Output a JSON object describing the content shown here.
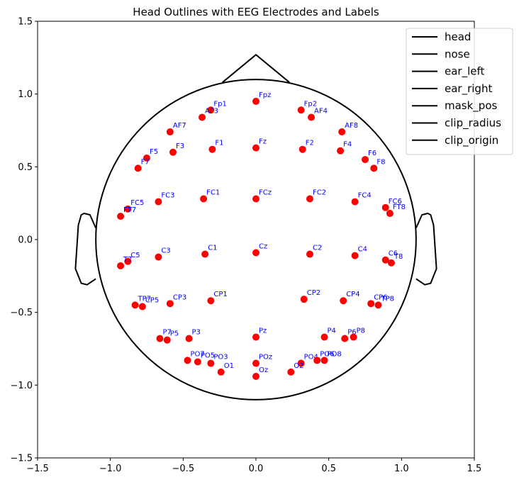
{
  "chart_data": {
    "type": "scatter",
    "title": "Head Outlines with EEG Electrodes and Labels",
    "xlabel": "",
    "ylabel": "",
    "xlim": [
      -1.5,
      1.5
    ],
    "ylim": [
      -1.5,
      1.5
    ],
    "xticks": [
      "−1.5",
      "−1.0",
      "−0.5",
      "0.0",
      "0.5",
      "1.0",
      "1.5"
    ],
    "yticks": [
      "−1.5",
      "−1.0",
      "−0.5",
      "0.0",
      "0.5",
      "1.0",
      "1.5"
    ],
    "xtick_values": [
      -1.5,
      -1.0,
      -0.5,
      0.0,
      0.5,
      1.0,
      1.5
    ],
    "ytick_values": [
      -1.5,
      -1.0,
      -0.5,
      0.0,
      0.5,
      1.0,
      1.5
    ],
    "grid": false,
    "legend_position": "top-right",
    "legend": [
      "head",
      "nose",
      "ear_left",
      "ear_right",
      "mask_pos",
      "clip_radius",
      "clip_origin"
    ],
    "colors": {
      "outline": "#000000",
      "electrode": "#ff0000",
      "label": "#0000ff"
    },
    "head_radius": 1.1,
    "nose": [
      [
        -0.23,
        1.08
      ],
      [
        0.0,
        1.27
      ],
      [
        0.23,
        1.08
      ]
    ],
    "ear_right": [
      [
        1.1,
        0.08
      ],
      [
        1.14,
        0.17
      ],
      [
        1.18,
        0.18
      ],
      [
        1.2,
        0.17
      ],
      [
        1.22,
        0.1
      ],
      [
        1.24,
        -0.2
      ],
      [
        1.2,
        -0.3
      ],
      [
        1.16,
        -0.31
      ],
      [
        1.1,
        -0.27
      ]
    ],
    "ear_left": [
      [
        -1.1,
        0.08
      ],
      [
        -1.14,
        0.17
      ],
      [
        -1.18,
        0.18
      ],
      [
        -1.2,
        0.17
      ],
      [
        -1.22,
        0.1
      ],
      [
        -1.24,
        -0.2
      ],
      [
        -1.2,
        -0.3
      ],
      [
        -1.16,
        -0.31
      ],
      [
        -1.1,
        -0.27
      ]
    ],
    "electrodes": [
      {
        "name": "Fp1",
        "x": -0.31,
        "y": 0.89
      },
      {
        "name": "Fpz",
        "x": 0.0,
        "y": 0.95
      },
      {
        "name": "Fp2",
        "x": 0.31,
        "y": 0.89
      },
      {
        "name": "AF3",
        "x": -0.37,
        "y": 0.84
      },
      {
        "name": "AF4",
        "x": 0.38,
        "y": 0.84
      },
      {
        "name": "AF7",
        "x": -0.59,
        "y": 0.74
      },
      {
        "name": "AF8",
        "x": 0.59,
        "y": 0.74
      },
      {
        "name": "F1",
        "x": -0.3,
        "y": 0.62
      },
      {
        "name": "Fz",
        "x": 0.0,
        "y": 0.63
      },
      {
        "name": "F2",
        "x": 0.32,
        "y": 0.62
      },
      {
        "name": "F3",
        "x": -0.57,
        "y": 0.6
      },
      {
        "name": "F4",
        "x": 0.58,
        "y": 0.61
      },
      {
        "name": "F5",
        "x": -0.75,
        "y": 0.56
      },
      {
        "name": "F6",
        "x": 0.75,
        "y": 0.55
      },
      {
        "name": "F7",
        "x": -0.81,
        "y": 0.49
      },
      {
        "name": "F8",
        "x": 0.81,
        "y": 0.49
      },
      {
        "name": "FC1",
        "x": -0.36,
        "y": 0.28
      },
      {
        "name": "FCz",
        "x": 0.0,
        "y": 0.28
      },
      {
        "name": "FC2",
        "x": 0.37,
        "y": 0.28
      },
      {
        "name": "FC3",
        "x": -0.67,
        "y": 0.26
      },
      {
        "name": "FC4",
        "x": 0.68,
        "y": 0.26
      },
      {
        "name": "FC5",
        "x": -0.88,
        "y": 0.21
      },
      {
        "name": "FC6",
        "x": 0.89,
        "y": 0.22
      },
      {
        "name": "FT7",
        "x": -0.93,
        "y": 0.16
      },
      {
        "name": "FT8",
        "x": 0.92,
        "y": 0.18
      },
      {
        "name": "C1",
        "x": -0.35,
        "y": -0.1
      },
      {
        "name": "Cz",
        "x": 0.0,
        "y": -0.09
      },
      {
        "name": "C2",
        "x": 0.37,
        "y": -0.1
      },
      {
        "name": "C3",
        "x": -0.67,
        "y": -0.12
      },
      {
        "name": "C4",
        "x": 0.68,
        "y": -0.11
      },
      {
        "name": "C5",
        "x": -0.88,
        "y": -0.15
      },
      {
        "name": "C6",
        "x": 0.89,
        "y": -0.14
      },
      {
        "name": "T7",
        "x": -0.93,
        "y": -0.18
      },
      {
        "name": "T8",
        "x": 0.93,
        "y": -0.16
      },
      {
        "name": "CP1",
        "x": -0.31,
        "y": -0.42
      },
      {
        "name": "CP2",
        "x": 0.33,
        "y": -0.41
      },
      {
        "name": "CP3",
        "x": -0.59,
        "y": -0.44
      },
      {
        "name": "CP4",
        "x": 0.6,
        "y": -0.42
      },
      {
        "name": "CP5",
        "x": -0.78,
        "y": -0.46
      },
      {
        "name": "CP6",
        "x": 0.79,
        "y": -0.44
      },
      {
        "name": "TP7",
        "x": -0.83,
        "y": -0.45
      },
      {
        "name": "TP8",
        "x": 0.84,
        "y": -0.45
      },
      {
        "name": "P3",
        "x": -0.46,
        "y": -0.68
      },
      {
        "name": "Pz",
        "x": 0.0,
        "y": -0.67
      },
      {
        "name": "P4",
        "x": 0.47,
        "y": -0.67
      },
      {
        "name": "P5",
        "x": -0.61,
        "y": -0.69
      },
      {
        "name": "P6",
        "x": 0.61,
        "y": -0.68
      },
      {
        "name": "P7",
        "x": -0.66,
        "y": -0.68
      },
      {
        "name": "P8",
        "x": 0.67,
        "y": -0.67
      },
      {
        "name": "PO3",
        "x": -0.31,
        "y": -0.85
      },
      {
        "name": "POz",
        "x": 0.0,
        "y": -0.85
      },
      {
        "name": "PO4",
        "x": 0.31,
        "y": -0.85
      },
      {
        "name": "PO5",
        "x": -0.4,
        "y": -0.84
      },
      {
        "name": "PO6",
        "x": 0.42,
        "y": -0.83
      },
      {
        "name": "PO7",
        "x": -0.47,
        "y": -0.83
      },
      {
        "name": "PO8",
        "x": 0.47,
        "y": -0.83
      },
      {
        "name": "O1",
        "x": -0.24,
        "y": -0.91
      },
      {
        "name": "Oz",
        "x": 0.0,
        "y": -0.94
      },
      {
        "name": "O2",
        "x": 0.24,
        "y": -0.91
      }
    ]
  }
}
